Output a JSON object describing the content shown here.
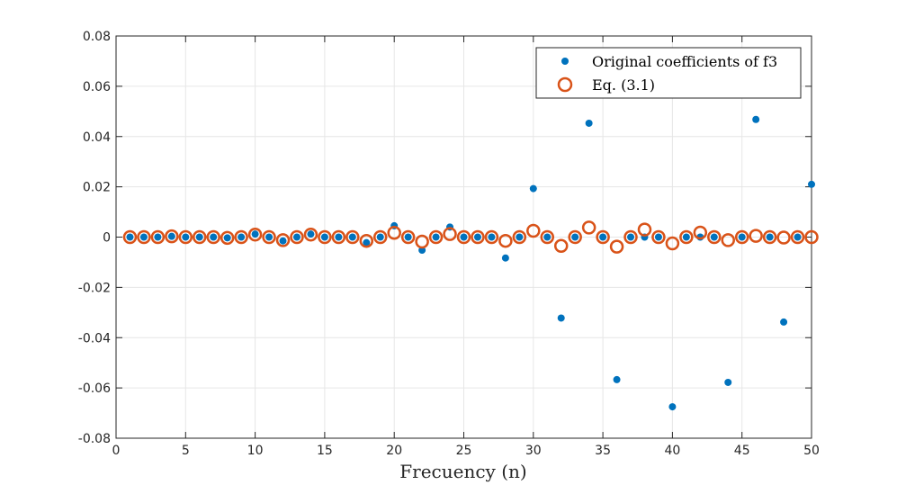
{
  "chart_data": {
    "type": "scatter",
    "title": "",
    "xlabel": "Frecuency (n)",
    "ylabel": "",
    "xlim": [
      0,
      50
    ],
    "ylim": [
      -0.08,
      0.08
    ],
    "xticks": [
      "0",
      "5",
      "10",
      "15",
      "20",
      "25",
      "30",
      "35",
      "40",
      "45",
      "50"
    ],
    "yticks": [
      "-0.08",
      "-0.06",
      "-0.04",
      "-0.02",
      "0",
      "0.02",
      "0.04",
      "0.06",
      "0.08"
    ],
    "grid": true,
    "legend_position": "top-right",
    "legend": [
      "Original coefficients of f3",
      "Eq. (3.1)"
    ],
    "series": [
      {
        "name": "Original coefficients of f3",
        "marker": "filled-dot",
        "color": "#0072BD",
        "x": [
          1,
          2,
          3,
          4,
          5,
          6,
          7,
          8,
          9,
          10,
          11,
          12,
          13,
          14,
          15,
          16,
          17,
          18,
          19,
          20,
          21,
          22,
          23,
          24,
          25,
          26,
          27,
          28,
          29,
          30,
          31,
          32,
          33,
          34,
          35,
          36,
          37,
          38,
          39,
          40,
          41,
          42,
          43,
          44,
          45,
          46,
          47,
          48,
          49,
          50
        ],
        "y": [
          0,
          0,
          0,
          0.0003,
          0,
          0,
          0,
          -0.0003,
          0,
          0.0012,
          0,
          -0.0015,
          0,
          0.0012,
          0,
          0,
          0,
          -0.0022,
          0,
          0.0045,
          0,
          -0.0052,
          0,
          0.004,
          0,
          0,
          0,
          -0.0083,
          0,
          0.0193,
          0,
          -0.0322,
          0,
          0.0453,
          0,
          -0.0567,
          0,
          0,
          0,
          -0.0675,
          0,
          0,
          0,
          -0.0578,
          0,
          0.0468,
          0,
          -0.0338,
          0,
          0.021
        ]
      },
      {
        "name": "Eq. (3.1)",
        "marker": "open-circle",
        "color": "#D95319",
        "x": [
          1,
          2,
          3,
          4,
          5,
          6,
          7,
          8,
          9,
          10,
          11,
          12,
          13,
          14,
          15,
          16,
          17,
          18,
          19,
          20,
          21,
          22,
          23,
          24,
          25,
          26,
          27,
          28,
          29,
          30,
          31,
          32,
          33,
          34,
          35,
          36,
          37,
          38,
          39,
          40,
          41,
          42,
          43,
          44,
          45,
          46,
          47,
          48,
          49,
          50
        ],
        "y": [
          0,
          0,
          0,
          0.0003,
          0,
          0,
          0,
          -0.0003,
          0,
          0.001,
          0,
          -0.0012,
          0,
          0.001,
          0,
          0,
          0,
          -0.0015,
          0,
          0.0017,
          0,
          -0.0018,
          0,
          0.0012,
          0,
          0,
          0,
          -0.0015,
          0,
          0.0025,
          0,
          -0.0035,
          0,
          0.0038,
          0,
          -0.0038,
          0,
          0.003,
          0,
          -0.0025,
          0,
          0.0018,
          0,
          -0.0012,
          0,
          0.0005,
          0,
          -0.0002,
          0,
          0
        ]
      }
    ]
  }
}
